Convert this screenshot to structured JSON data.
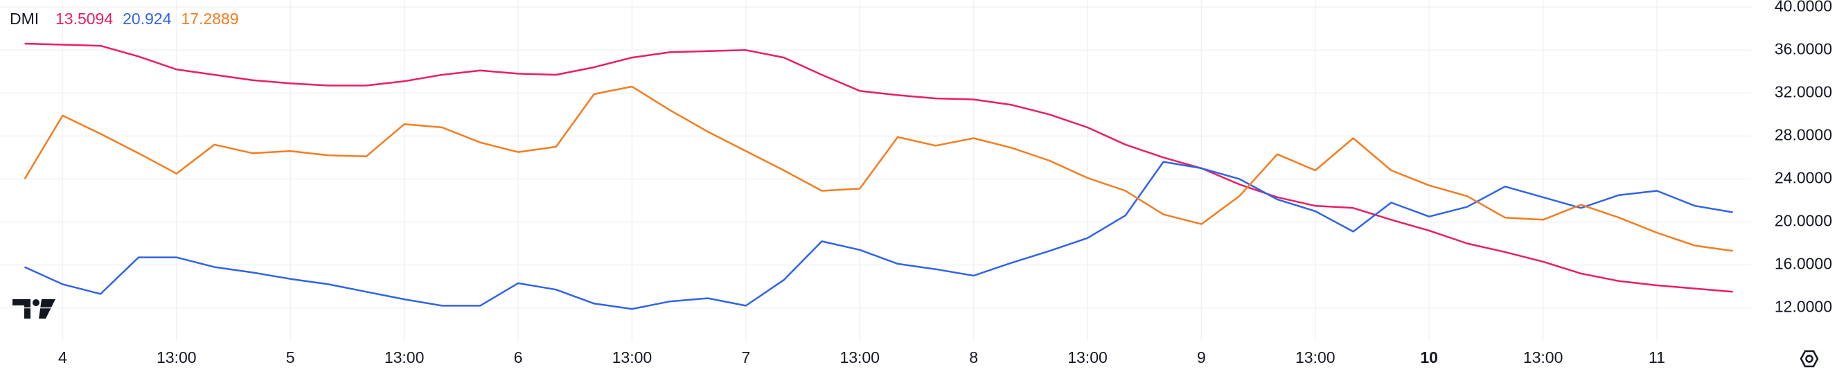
{
  "chart_data": {
    "type": "line",
    "title": "DMI",
    "categories": [
      null,
      "4",
      null,
      null,
      "13:00",
      null,
      null,
      "5",
      null,
      null,
      "13:00",
      null,
      null,
      "6",
      null,
      null,
      "13:00",
      null,
      null,
      "7",
      null,
      null,
      "13:00",
      null,
      null,
      "8",
      null,
      null,
      "13:00",
      null,
      null,
      "9",
      null,
      null,
      "13:00",
      null,
      null,
      "10",
      null,
      null,
      "13:00",
      null,
      null,
      "11",
      null,
      null
    ],
    "series": [
      {
        "color": "#e91e63",
        "last_value": 13.5094,
        "values": [
          36.6,
          36.5,
          36.4,
          35.4,
          34.2,
          33.7,
          33.2,
          32.9,
          32.7,
          32.7,
          33.1,
          33.7,
          34.1,
          33.8,
          33.7,
          34.4,
          35.3,
          35.8,
          35.9,
          36.0,
          35.3,
          33.7,
          32.2,
          31.8,
          31.5,
          31.4,
          30.9,
          30.0,
          28.8,
          27.2,
          26.0,
          25.0,
          23.5,
          22.3,
          21.5,
          21.3,
          20.2,
          19.2,
          18.0,
          17.2,
          16.3,
          15.2,
          14.5,
          14.1,
          13.8,
          13.5
        ]
      },
      {
        "color": "#2f64e8",
        "last_value": 20.924,
        "values": [
          15.8,
          14.2,
          13.3,
          16.7,
          16.7,
          15.8,
          15.3,
          14.7,
          14.2,
          13.5,
          12.8,
          12.2,
          12.2,
          14.3,
          13.7,
          12.4,
          11.9,
          12.6,
          12.9,
          12.2,
          14.6,
          18.2,
          17.4,
          16.1,
          15.6,
          15.0,
          16.2,
          17.3,
          18.5,
          20.6,
          25.6,
          25.0,
          24.0,
          22.1,
          21.0,
          19.1,
          21.8,
          20.5,
          21.4,
          23.3,
          22.3,
          21.3,
          22.5,
          22.9,
          21.5,
          20.9
        ]
      },
      {
        "color": "#f57c1f",
        "last_value": 17.2889,
        "values": [
          24.0,
          29.9,
          28.2,
          26.4,
          24.5,
          27.2,
          26.4,
          26.6,
          26.2,
          26.1,
          29.1,
          28.8,
          27.4,
          26.5,
          27.0,
          31.9,
          32.6,
          30.4,
          28.4,
          26.6,
          24.8,
          22.9,
          23.1,
          27.9,
          27.1,
          27.8,
          26.9,
          25.7,
          24.1,
          22.9,
          20.7,
          19.8,
          22.4,
          26.3,
          24.8,
          27.8,
          24.8,
          23.4,
          22.4,
          20.4,
          20.2,
          21.6,
          20.4,
          19.0,
          17.8,
          17.3
        ]
      }
    ],
    "ylim": [
      8.94,
      40.66
    ],
    "yticks": [
      {
        "value": 12,
        "label": "12.0000"
      },
      {
        "value": 16,
        "label": "16.0000"
      },
      {
        "value": 20,
        "label": "20.0000"
      },
      {
        "value": 24,
        "label": "24.0000"
      },
      {
        "value": 28,
        "label": "28.0000"
      },
      {
        "value": 32,
        "label": "32.0000"
      },
      {
        "value": 36,
        "label": "36.0000"
      },
      {
        "value": 40,
        "label": "40.0000"
      }
    ],
    "grid": true
  }
}
